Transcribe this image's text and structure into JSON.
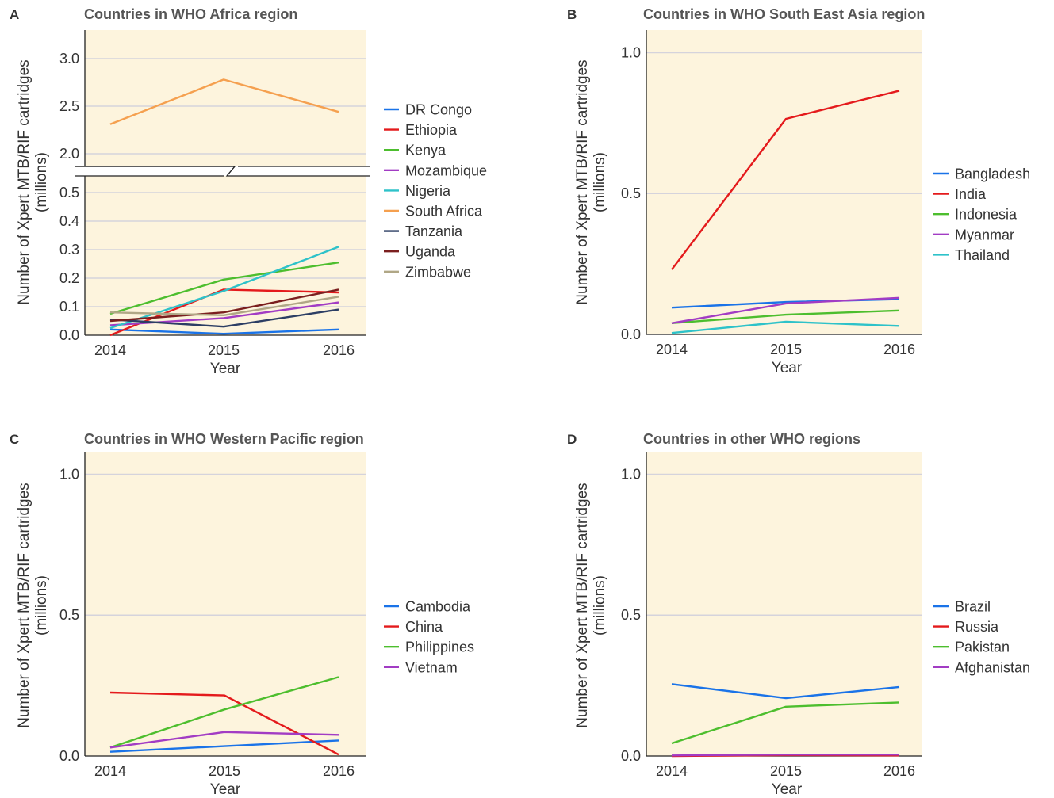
{
  "figure": {
    "ylabel_line1": "Number of Xpert MTB/RIF cartridges",
    "ylabel_line2": "(millions)",
    "xlabel": "Year"
  },
  "chart_data": [
    {
      "panel": "A",
      "type": "line",
      "title": "Countries in WHO Africa region",
      "xlabel": "Year",
      "ylabel": "Number of Xpert MTB/RIF cartridges (millions)",
      "x": [
        "2014",
        "2015",
        "2016"
      ],
      "axis_break": {
        "lower_range": [
          0,
          0.6
        ],
        "upper_range": [
          1.8,
          3.3
        ]
      },
      "lower_ticks": [
        "0.0",
        "0.1",
        "0.2",
        "0.3",
        "0.4",
        "0.5"
      ],
      "upper_ticks": [
        "2.0",
        "2.5",
        "3.0"
      ],
      "grid": true,
      "background": "#fdf4dd",
      "legend_position": "right",
      "series": [
        {
          "name": "DR Congo",
          "color": "#1a73e8",
          "values": [
            0.02,
            0.005,
            0.02
          ]
        },
        {
          "name": "Ethiopia",
          "color": "#e41a1c",
          "values": [
            0.0,
            0.16,
            0.15
          ]
        },
        {
          "name": "Kenya",
          "color": "#4dbe2e",
          "values": [
            0.075,
            0.195,
            0.255
          ]
        },
        {
          "name": "Mozambique",
          "color": "#a23cc4",
          "values": [
            0.035,
            0.06,
            0.115
          ]
        },
        {
          "name": "Nigeria",
          "color": "#2ec2c9",
          "values": [
            0.025,
            0.155,
            0.31
          ]
        },
        {
          "name": "South Africa",
          "color": "#f5a04f",
          "values": [
            2.31,
            2.78,
            2.44
          ]
        },
        {
          "name": "Tanzania",
          "color": "#2c3e64",
          "values": [
            0.055,
            0.03,
            0.09
          ]
        },
        {
          "name": "Uganda",
          "color": "#7b1f1f",
          "values": [
            0.05,
            0.08,
            0.16
          ]
        },
        {
          "name": "Zimbabwe",
          "color": "#b0a786",
          "values": [
            0.08,
            0.07,
            0.135
          ]
        }
      ]
    },
    {
      "panel": "B",
      "type": "line",
      "title": "Countries in WHO South East Asia region",
      "xlabel": "Year",
      "ylabel": "Number of Xpert MTB/RIF cartridges (millions)",
      "x": [
        "2014",
        "2015",
        "2016"
      ],
      "ylim": [
        0,
        1.08
      ],
      "yticks": [
        "0.0",
        "0.5",
        "1.0"
      ],
      "grid": true,
      "background": "#fdf4dd",
      "legend_position": "right",
      "series": [
        {
          "name": "Bangladesh",
          "color": "#1a73e8",
          "values": [
            0.095,
            0.115,
            0.125
          ]
        },
        {
          "name": "India",
          "color": "#e41a1c",
          "values": [
            0.23,
            0.765,
            0.865
          ]
        },
        {
          "name": "Indonesia",
          "color": "#4dbe2e",
          "values": [
            0.04,
            0.07,
            0.085
          ]
        },
        {
          "name": "Myanmar",
          "color": "#a23cc4",
          "values": [
            0.04,
            0.11,
            0.13
          ]
        },
        {
          "name": "Thailand",
          "color": "#2ec2c9",
          "values": [
            0.005,
            0.045,
            0.03
          ]
        }
      ]
    },
    {
      "panel": "C",
      "type": "line",
      "title": "Countries in WHO Western Pacific region",
      "xlabel": "Year",
      "ylabel": "Number of Xpert MTB/RIF cartridges (millions)",
      "x": [
        "2014",
        "2015",
        "2016"
      ],
      "ylim": [
        0,
        1.08
      ],
      "yticks": [
        "0.0",
        "0.5",
        "1.0"
      ],
      "grid": true,
      "background": "#fdf4dd",
      "legend_position": "right",
      "series": [
        {
          "name": "Cambodia",
          "color": "#1a73e8",
          "values": [
            0.015,
            0.035,
            0.055
          ]
        },
        {
          "name": "China",
          "color": "#e41a1c",
          "values": [
            0.225,
            0.215,
            0.005
          ]
        },
        {
          "name": "Philippines",
          "color": "#4dbe2e",
          "values": [
            0.03,
            0.165,
            0.28
          ]
        },
        {
          "name": "Vietnam",
          "color": "#a23cc4",
          "values": [
            0.03,
            0.085,
            0.075
          ]
        }
      ]
    },
    {
      "panel": "D",
      "type": "line",
      "title": "Countries in other WHO regions",
      "xlabel": "Year",
      "ylabel": "Number of Xpert MTB/RIF cartridges (millions)",
      "x": [
        "2014",
        "2015",
        "2016"
      ],
      "ylim": [
        0,
        1.08
      ],
      "yticks": [
        "0.0",
        "0.5",
        "1.0"
      ],
      "grid": true,
      "background": "#fdf4dd",
      "legend_position": "right",
      "series": [
        {
          "name": "Brazil",
          "color": "#1a73e8",
          "values": [
            0.255,
            0.205,
            0.245
          ]
        },
        {
          "name": "Russia",
          "color": "#e41a1c",
          "values": [
            0.0,
            0.003,
            0.002
          ]
        },
        {
          "name": "Pakistan",
          "color": "#4dbe2e",
          "values": [
            0.045,
            0.175,
            0.19
          ]
        },
        {
          "name": "Afghanistan",
          "color": "#a23cc4",
          "values": [
            0.002,
            0.005,
            0.005
          ]
        }
      ]
    }
  ]
}
